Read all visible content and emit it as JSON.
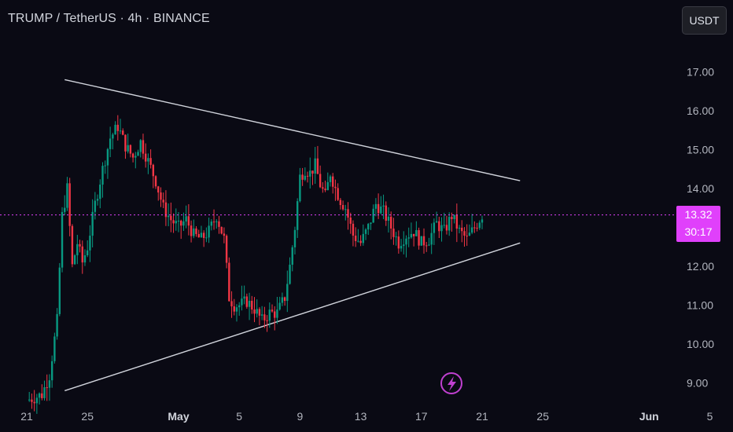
{
  "header": {
    "title": "TRUMP / TetherUS · 4h · BINANCE",
    "currency": "USDT"
  },
  "last_price": {
    "value": "13.32",
    "countdown": "30:17"
  },
  "colors": {
    "background": "#0a0a14",
    "up": "#089981",
    "down": "#f23645",
    "price_line": "#e040fb",
    "trendline": "#d1d4dc"
  },
  "icons": {
    "replay": "lightning-icon"
  },
  "chart_data": {
    "type": "candlestick",
    "symbol": "TRUMP/USDT",
    "interval": "4h",
    "exchange": "BINANCE",
    "y_ticks": [
      "17.00",
      "16.00",
      "15.00",
      "14.00",
      "12.00",
      "11.00",
      "10.00",
      "9.00"
    ],
    "x_ticks": [
      {
        "label": "21",
        "date": "2025-04-21"
      },
      {
        "label": "25",
        "date": "2025-04-25"
      },
      {
        "label": "May",
        "date": "2025-05-01",
        "bold": true
      },
      {
        "label": "5",
        "date": "2025-05-05"
      },
      {
        "label": "9",
        "date": "2025-05-09"
      },
      {
        "label": "13",
        "date": "2025-05-13"
      },
      {
        "label": "17",
        "date": "2025-05-17"
      },
      {
        "label": "21",
        "date": "2025-05-21"
      },
      {
        "label": "25",
        "date": "2025-05-25"
      },
      {
        "label": "Jun",
        "date": "2025-06-01",
        "bold": true
      },
      {
        "label": "5",
        "date": "2025-06-05"
      }
    ],
    "price_path": [
      [
        "2025-04-21",
        8.55
      ],
      [
        "2025-04-22",
        8.7
      ],
      [
        "2025-04-22 12:00",
        9.2
      ],
      [
        "2025-04-23",
        10.6
      ],
      [
        "2025-04-23 08:00",
        13.3
      ],
      [
        "2025-04-23 16:00",
        14.0
      ],
      [
        "2025-04-24",
        12.0
      ],
      [
        "2025-04-24 08:00",
        12.6
      ],
      [
        "2025-04-24 16:00",
        12.1
      ],
      [
        "2025-04-25",
        12.5
      ],
      [
        "2025-04-25 12:00",
        13.6
      ],
      [
        "2025-04-26",
        14.5
      ],
      [
        "2025-04-26 12:00",
        15.3
      ],
      [
        "2025-04-27",
        15.6
      ],
      [
        "2025-04-27 12:00",
        15.1
      ],
      [
        "2025-04-28",
        14.8
      ],
      [
        "2025-04-28 12:00",
        15.2
      ],
      [
        "2025-04-29",
        14.7
      ],
      [
        "2025-04-29 12:00",
        14.2
      ],
      [
        "2025-04-30",
        13.5
      ],
      [
        "2025-04-30 12:00",
        13.2
      ],
      [
        "2025-05-01",
        13.0
      ],
      [
        "2025-05-01 12:00",
        13.2
      ],
      [
        "2025-05-02",
        12.8
      ],
      [
        "2025-05-02 12:00",
        12.7
      ],
      [
        "2025-05-03",
        12.9
      ],
      [
        "2025-05-03 12:00",
        13.3
      ],
      [
        "2025-05-04",
        12.7
      ],
      [
        "2025-05-04 08:00",
        11.2
      ],
      [
        "2025-05-04 16:00",
        11.0
      ],
      [
        "2025-05-05",
        11.0
      ],
      [
        "2025-05-05 12:00",
        11.1
      ],
      [
        "2025-05-06",
        10.9
      ],
      [
        "2025-05-06 12:00",
        10.6
      ],
      [
        "2025-05-07",
        10.8
      ],
      [
        "2025-05-07 12:00",
        10.8
      ],
      [
        "2025-05-08",
        11.2
      ],
      [
        "2025-05-08 08:00",
        12.0
      ],
      [
        "2025-05-08 16:00",
        13.0
      ],
      [
        "2025-05-09",
        14.3
      ],
      [
        "2025-05-09 08:00",
        14.5
      ],
      [
        "2025-05-09 16:00",
        14.4
      ],
      [
        "2025-05-10",
        14.6
      ],
      [
        "2025-05-10 08:00",
        14.1
      ],
      [
        "2025-05-10 16:00",
        13.8
      ],
      [
        "2025-05-11",
        14.4
      ],
      [
        "2025-05-11 08:00",
        14.0
      ],
      [
        "2025-05-11 16:00",
        13.7
      ],
      [
        "2025-05-12",
        13.5
      ],
      [
        "2025-05-12 12:00",
        12.8
      ],
      [
        "2025-05-13",
        12.6
      ],
      [
        "2025-05-13 12:00",
        13.0
      ],
      [
        "2025-05-14",
        13.6
      ],
      [
        "2025-05-14 12:00",
        13.4
      ],
      [
        "2025-05-15",
        13.0
      ],
      [
        "2025-05-15 12:00",
        12.6
      ],
      [
        "2025-05-16",
        12.8
      ],
      [
        "2025-05-16 12:00",
        12.9
      ],
      [
        "2025-05-17",
        12.6
      ],
      [
        "2025-05-17 12:00",
        12.7
      ],
      [
        "2025-05-18",
        13.1
      ],
      [
        "2025-05-18 12:00",
        12.9
      ],
      [
        "2025-05-19",
        13.3
      ],
      [
        "2025-05-19 12:00",
        12.9
      ],
      [
        "2025-05-20",
        12.7
      ],
      [
        "2025-05-20 12:00",
        13.0
      ],
      [
        "2025-05-21",
        13.32
      ]
    ],
    "trendlines": [
      {
        "start": [
          "2025-04-23 12:00",
          16.8
        ],
        "end": [
          "2025-05-23 12:00",
          14.2
        ]
      },
      {
        "start": [
          "2025-04-23 12:00",
          8.8
        ],
        "end": [
          "2025-05-23 12:00",
          12.6
        ]
      }
    ]
  }
}
